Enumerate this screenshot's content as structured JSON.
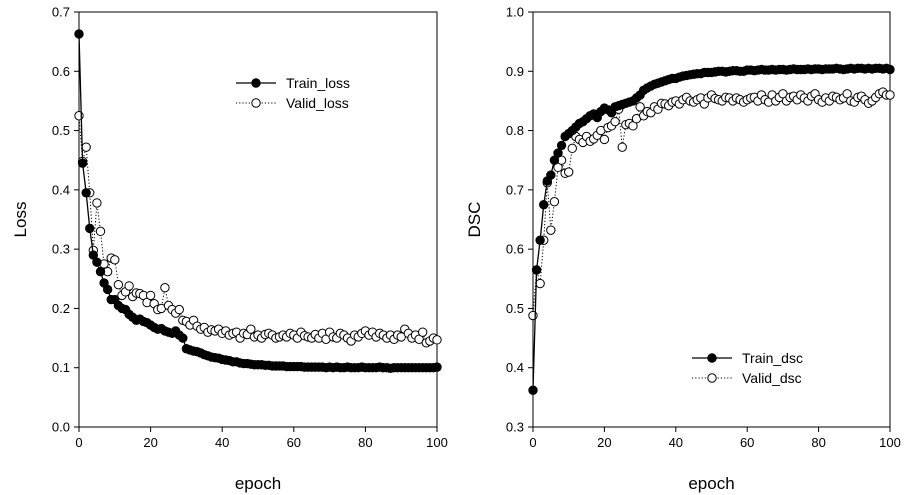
{
  "chart_data": [
    {
      "type": "line",
      "xlabel": "epoch",
      "ylabel": "Loss",
      "xlim": [
        0,
        100
      ],
      "ylim": [
        0,
        0.7
      ],
      "xticks": [
        "0",
        "20",
        "40",
        "60",
        "80",
        "100"
      ],
      "yticks": [
        "0.0",
        "0.1",
        "0.2",
        "0.3",
        "0.4",
        "0.5",
        "0.6",
        "0.7"
      ],
      "grid": false,
      "legend_position": "top-right",
      "series": [
        {
          "name": "Train_loss",
          "style": "solid-line-filled-circle",
          "color": "#000000",
          "x": [
            0,
            1,
            2,
            3,
            4,
            5,
            6,
            7,
            8,
            9,
            10,
            11,
            12,
            13,
            14,
            15,
            16,
            17,
            18,
            19,
            20,
            21,
            22,
            23,
            24,
            25,
            26,
            27,
            28,
            29,
            30,
            31,
            32,
            33,
            34,
            35,
            36,
            37,
            38,
            39,
            40,
            41,
            42,
            43,
            44,
            45,
            46,
            47,
            48,
            49,
            50,
            51,
            52,
            53,
            54,
            55,
            56,
            57,
            58,
            59,
            60,
            61,
            62,
            63,
            64,
            65,
            66,
            67,
            68,
            69,
            70,
            71,
            72,
            73,
            74,
            75,
            76,
            77,
            78,
            79,
            80,
            81,
            82,
            83,
            84,
            85,
            86,
            87,
            88,
            89,
            90,
            91,
            92,
            93,
            94,
            95,
            96,
            97,
            98,
            99,
            100
          ],
          "values": [
            0.663,
            0.445,
            0.395,
            0.335,
            0.29,
            0.278,
            0.262,
            0.243,
            0.232,
            0.215,
            0.215,
            0.205,
            0.2,
            0.198,
            0.19,
            0.185,
            0.18,
            0.182,
            0.178,
            0.176,
            0.172,
            0.168,
            0.165,
            0.166,
            0.162,
            0.16,
            0.158,
            0.162,
            0.155,
            0.15,
            0.132,
            0.13,
            0.128,
            0.127,
            0.125,
            0.122,
            0.12,
            0.118,
            0.117,
            0.116,
            0.114,
            0.113,
            0.112,
            0.11,
            0.11,
            0.108,
            0.107,
            0.107,
            0.106,
            0.105,
            0.105,
            0.105,
            0.104,
            0.104,
            0.103,
            0.103,
            0.103,
            0.103,
            0.102,
            0.102,
            0.102,
            0.102,
            0.102,
            0.101,
            0.101,
            0.101,
            0.101,
            0.101,
            0.101,
            0.1,
            0.101,
            0.1,
            0.101,
            0.1,
            0.1,
            0.101,
            0.1,
            0.1,
            0.1,
            0.101,
            0.1,
            0.1,
            0.1,
            0.1,
            0.101,
            0.1,
            0.1,
            0.099,
            0.1,
            0.1,
            0.1,
            0.1,
            0.1,
            0.1,
            0.1,
            0.1,
            0.1,
            0.1,
            0.1,
            0.1,
            0.101
          ]
        },
        {
          "name": "Valid_loss",
          "style": "dotted-line-open-circle",
          "color": "#000000",
          "x": [
            0,
            1,
            2,
            3,
            4,
            5,
            6,
            7,
            8,
            9,
            10,
            11,
            12,
            13,
            14,
            15,
            16,
            17,
            18,
            19,
            20,
            21,
            22,
            23,
            24,
            25,
            26,
            27,
            28,
            29,
            30,
            31,
            32,
            33,
            34,
            35,
            36,
            37,
            38,
            39,
            40,
            41,
            42,
            43,
            44,
            45,
            46,
            47,
            48,
            49,
            50,
            51,
            52,
            53,
            54,
            55,
            56,
            57,
            58,
            59,
            60,
            61,
            62,
            63,
            64,
            65,
            66,
            67,
            68,
            69,
            70,
            71,
            72,
            73,
            74,
            75,
            76,
            77,
            78,
            79,
            80,
            81,
            82,
            83,
            84,
            85,
            86,
            87,
            88,
            89,
            90,
            91,
            92,
            93,
            94,
            95,
            96,
            97,
            98,
            99,
            100
          ],
          "values": [
            0.525,
            0.448,
            0.472,
            0.395,
            0.298,
            0.378,
            0.33,
            0.275,
            0.262,
            0.285,
            0.282,
            0.24,
            0.222,
            0.228,
            0.238,
            0.22,
            0.226,
            0.225,
            0.222,
            0.21,
            0.222,
            0.208,
            0.198,
            0.2,
            0.235,
            0.205,
            0.198,
            0.192,
            0.198,
            0.18,
            0.178,
            0.172,
            0.18,
            0.17,
            0.165,
            0.168,
            0.16,
            0.164,
            0.162,
            0.165,
            0.158,
            0.162,
            0.155,
            0.158,
            0.16,
            0.15,
            0.158,
            0.156,
            0.165,
            0.152,
            0.155,
            0.15,
            0.156,
            0.158,
            0.155,
            0.15,
            0.152,
            0.155,
            0.152,
            0.158,
            0.155,
            0.15,
            0.16,
            0.154,
            0.152,
            0.15,
            0.156,
            0.15,
            0.158,
            0.148,
            0.16,
            0.152,
            0.15,
            0.158,
            0.155,
            0.15,
            0.145,
            0.155,
            0.152,
            0.158,
            0.162,
            0.155,
            0.16,
            0.152,
            0.158,
            0.155,
            0.15,
            0.155,
            0.148,
            0.155,
            0.152,
            0.165,
            0.158,
            0.15,
            0.155,
            0.148,
            0.16,
            0.142,
            0.145,
            0.15,
            0.147
          ]
        }
      ]
    },
    {
      "type": "line",
      "xlabel": "epoch",
      "ylabel": "DSC",
      "xlim": [
        0,
        100
      ],
      "ylim": [
        0.3,
        1.0
      ],
      "xticks": [
        "0",
        "20",
        "40",
        "60",
        "80",
        "100"
      ],
      "yticks": [
        "0.3",
        "0.4",
        "0.5",
        "0.6",
        "0.7",
        "0.8",
        "0.9",
        "1.0"
      ],
      "grid": false,
      "legend_position": "bottom-right",
      "series": [
        {
          "name": "Train_dsc",
          "style": "solid-line-filled-circle",
          "color": "#000000",
          "x": [
            0,
            1,
            2,
            3,
            4,
            5,
            6,
            7,
            8,
            9,
            10,
            11,
            12,
            13,
            14,
            15,
            16,
            17,
            18,
            19,
            20,
            21,
            22,
            23,
            24,
            25,
            26,
            27,
            28,
            29,
            30,
            31,
            32,
            33,
            34,
            35,
            36,
            37,
            38,
            39,
            40,
            41,
            42,
            43,
            44,
            45,
            46,
            47,
            48,
            49,
            50,
            51,
            52,
            53,
            54,
            55,
            56,
            57,
            58,
            59,
            60,
            61,
            62,
            63,
            64,
            65,
            66,
            67,
            68,
            69,
            70,
            71,
            72,
            73,
            74,
            75,
            76,
            77,
            78,
            79,
            80,
            81,
            82,
            83,
            84,
            85,
            86,
            87,
            88,
            89,
            90,
            91,
            92,
            93,
            94,
            95,
            96,
            97,
            98,
            99,
            100
          ],
          "values": [
            0.362,
            0.565,
            0.615,
            0.675,
            0.715,
            0.725,
            0.75,
            0.762,
            0.775,
            0.79,
            0.795,
            0.8,
            0.806,
            0.812,
            0.815,
            0.82,
            0.825,
            0.828,
            0.822,
            0.832,
            0.838,
            0.835,
            0.83,
            0.84,
            0.842,
            0.844,
            0.846,
            0.848,
            0.85,
            0.855,
            0.86,
            0.868,
            0.872,
            0.875,
            0.878,
            0.88,
            0.882,
            0.884,
            0.886,
            0.888,
            0.888,
            0.89,
            0.892,
            0.893,
            0.894,
            0.895,
            0.896,
            0.896,
            0.898,
            0.898,
            0.898,
            0.899,
            0.9,
            0.9,
            0.899,
            0.9,
            0.901,
            0.901,
            0.9,
            0.9,
            0.902,
            0.902,
            0.901,
            0.902,
            0.903,
            0.902,
            0.902,
            0.903,
            0.902,
            0.903,
            0.903,
            0.902,
            0.903,
            0.904,
            0.903,
            0.903,
            0.903,
            0.904,
            0.903,
            0.904,
            0.904,
            0.903,
            0.904,
            0.904,
            0.904,
            0.905,
            0.904,
            0.903,
            0.904,
            0.905,
            0.904,
            0.905,
            0.905,
            0.904,
            0.905,
            0.904,
            0.905,
            0.905,
            0.904,
            0.905,
            0.903
          ]
        },
        {
          "name": "Valid_dsc",
          "style": "dotted-line-open-circle",
          "color": "#000000",
          "x": [
            0,
            1,
            2,
            3,
            4,
            5,
            6,
            7,
            8,
            9,
            10,
            11,
            12,
            13,
            14,
            15,
            16,
            17,
            18,
            19,
            20,
            21,
            22,
            23,
            24,
            25,
            26,
            27,
            28,
            29,
            30,
            31,
            32,
            33,
            34,
            35,
            36,
            37,
            38,
            39,
            40,
            41,
            42,
            43,
            44,
            45,
            46,
            47,
            48,
            49,
            50,
            51,
            52,
            53,
            54,
            55,
            56,
            57,
            58,
            59,
            60,
            61,
            62,
            63,
            64,
            65,
            66,
            67,
            68,
            69,
            70,
            71,
            72,
            73,
            74,
            75,
            76,
            77,
            78,
            79,
            80,
            81,
            82,
            83,
            84,
            85,
            86,
            87,
            88,
            89,
            90,
            91,
            92,
            93,
            94,
            95,
            96,
            97,
            98,
            99,
            100
          ],
          "values": [
            0.488,
            0.565,
            0.542,
            0.615,
            0.712,
            0.632,
            0.68,
            0.738,
            0.75,
            0.728,
            0.73,
            0.77,
            0.79,
            0.785,
            0.78,
            0.79,
            0.782,
            0.786,
            0.792,
            0.8,
            0.785,
            0.805,
            0.808,
            0.815,
            0.836,
            0.772,
            0.81,
            0.812,
            0.808,
            0.82,
            0.84,
            0.825,
            0.832,
            0.83,
            0.84,
            0.836,
            0.846,
            0.845,
            0.842,
            0.848,
            0.85,
            0.845,
            0.852,
            0.856,
            0.85,
            0.848,
            0.852,
            0.855,
            0.845,
            0.855,
            0.86,
            0.854,
            0.852,
            0.85,
            0.856,
            0.855,
            0.85,
            0.855,
            0.852,
            0.848,
            0.852,
            0.855,
            0.856,
            0.85,
            0.86,
            0.852,
            0.848,
            0.86,
            0.85,
            0.856,
            0.862,
            0.85,
            0.856,
            0.858,
            0.852,
            0.86,
            0.855,
            0.85,
            0.858,
            0.862,
            0.852,
            0.848,
            0.855,
            0.85,
            0.858,
            0.856,
            0.852,
            0.855,
            0.862,
            0.85,
            0.848,
            0.856,
            0.858,
            0.852,
            0.846,
            0.85,
            0.856,
            0.862,
            0.865,
            0.86,
            0.86
          ]
        }
      ]
    }
  ]
}
